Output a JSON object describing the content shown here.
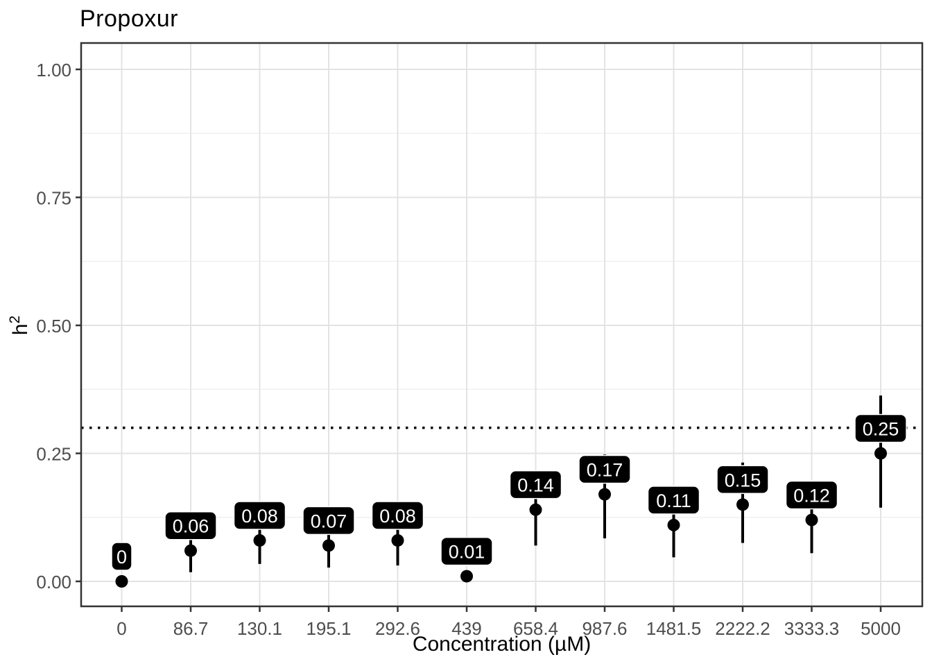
{
  "chart_data": {
    "type": "scatter",
    "subtype": "pointrange-with-labels",
    "title": "Propoxur",
    "xlabel": "Concentration (µM)",
    "ylabel": "h²",
    "ylabel_parts": {
      "base": "h",
      "exp": "2"
    },
    "legend": "none",
    "grid": "major+minor horizontal, major vertical",
    "ylim": [
      -0.05,
      1.05
    ],
    "y_ticks": [
      {
        "value": 0.0,
        "label": "0.00"
      },
      {
        "value": 0.25,
        "label": "0.25"
      },
      {
        "value": 0.5,
        "label": "0.50"
      },
      {
        "value": 0.75,
        "label": "0.75"
      },
      {
        "value": 1.0,
        "label": "1.00"
      }
    ],
    "y_minor_ticks": [
      0.125,
      0.375,
      0.625,
      0.875
    ],
    "reference_line": {
      "y": 0.3,
      "style": "dotted",
      "color": "#000000"
    },
    "categories": [
      "0",
      "86.7",
      "130.1",
      "195.1",
      "292.6",
      "439",
      "658.4",
      "987.6",
      "1481.5",
      "2222.2",
      "3333.3",
      "5000"
    ],
    "points": [
      {
        "x": "0",
        "value": 0.0,
        "ymin": 0.0,
        "ymax": 0.0,
        "label": "0"
      },
      {
        "x": "86.7",
        "value": 0.06,
        "ymin": 0.018,
        "ymax": 0.105,
        "label": "0.06"
      },
      {
        "x": "130.1",
        "value": 0.08,
        "ymin": 0.034,
        "ymax": 0.13,
        "label": "0.08"
      },
      {
        "x": "195.1",
        "value": 0.07,
        "ymin": 0.027,
        "ymax": 0.12,
        "label": "0.07"
      },
      {
        "x": "292.6",
        "value": 0.08,
        "ymin": 0.031,
        "ymax": 0.13,
        "label": "0.08"
      },
      {
        "x": "439",
        "value": 0.01,
        "ymin": 0.01,
        "ymax": 0.01,
        "label": "0.01"
      },
      {
        "x": "658.4",
        "value": 0.14,
        "ymin": 0.07,
        "ymax": 0.21,
        "label": "0.14"
      },
      {
        "x": "987.6",
        "value": 0.17,
        "ymin": 0.084,
        "ymax": 0.248,
        "label": "0.17"
      },
      {
        "x": "1481.5",
        "value": 0.11,
        "ymin": 0.047,
        "ymax": 0.18,
        "label": "0.11"
      },
      {
        "x": "2222.2",
        "value": 0.15,
        "ymin": 0.075,
        "ymax": 0.232,
        "label": "0.15"
      },
      {
        "x": "3333.3",
        "value": 0.12,
        "ymin": 0.055,
        "ymax": 0.19,
        "label": "0.12"
      },
      {
        "x": "5000",
        "value": 0.25,
        "ymin": 0.144,
        "ymax": 0.363,
        "label": "0.25"
      }
    ],
    "colors": {
      "point": "#000000",
      "errorbar": "#000000",
      "label_bg": "#000000",
      "label_text": "#FFFFFF",
      "label_border": "#FFFFFF",
      "grid_major": "#E3E3E3",
      "grid_minor": "#F0F0F0",
      "panel_border": "#333333",
      "tick": "#333333",
      "tick_text": "#4D4D4D",
      "background": "#FFFFFF"
    }
  }
}
